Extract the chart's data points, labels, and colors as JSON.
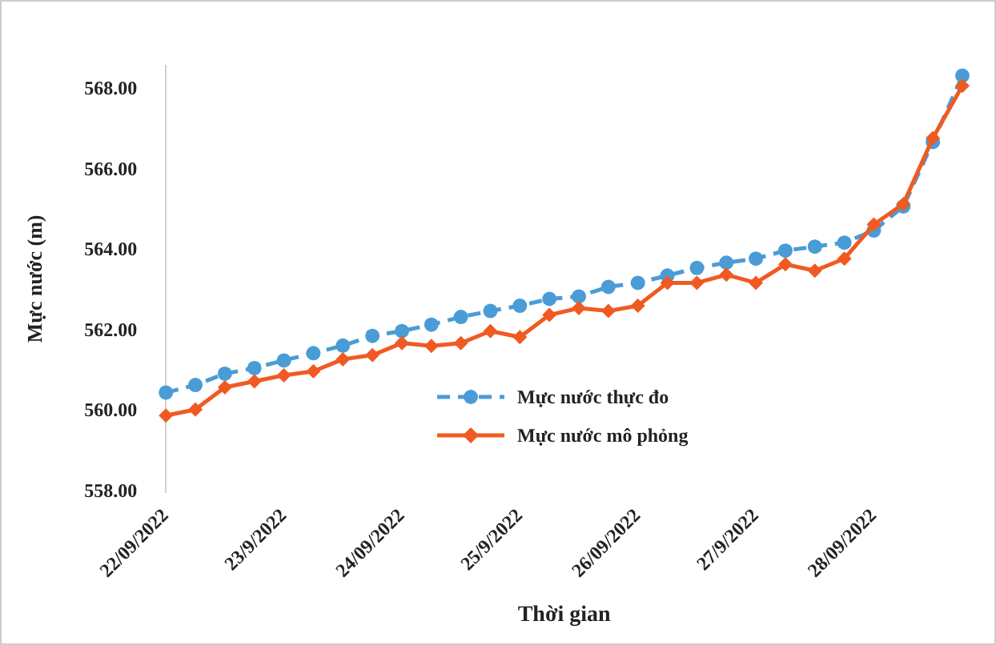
{
  "chart_data": {
    "type": "line",
    "xlabel": "Thời gian",
    "ylabel": "Mực nước (m)",
    "categories": [
      "22/09/2022",
      null,
      null,
      null,
      "23/9/2022",
      null,
      null,
      null,
      "24/09/2022",
      null,
      null,
      null,
      "25/9/2022",
      null,
      null,
      null,
      "26/09/2022",
      null,
      null,
      null,
      "27/9/2022",
      null,
      null,
      null,
      "28/09/2022",
      null,
      null,
      null
    ],
    "series": [
      {
        "name": "Mực nước thực đo",
        "color": "#4a9cd6",
        "line_style": "dashed",
        "marker": "circle",
        "values": [
          560.47,
          560.66,
          560.94,
          561.08,
          561.27,
          561.45,
          561.64,
          561.88,
          562.0,
          562.16,
          562.35,
          562.5,
          562.63,
          562.8,
          562.86,
          563.1,
          563.2,
          563.38,
          563.57,
          563.7,
          563.8,
          564.0,
          564.1,
          564.2,
          564.5,
          565.1,
          566.7,
          568.35
        ]
      },
      {
        "name": "Mực nước mô phỏng",
        "color": "#f05a22",
        "line_style": "solid",
        "marker": "diamond",
        "values": [
          559.9,
          560.05,
          560.6,
          560.75,
          560.9,
          561.0,
          561.3,
          561.4,
          561.7,
          561.63,
          561.7,
          562.0,
          561.85,
          562.4,
          562.57,
          562.5,
          562.63,
          563.2,
          563.2,
          563.4,
          563.2,
          563.66,
          563.5,
          563.8,
          564.65,
          565.16,
          566.8,
          568.1
        ]
      }
    ],
    "ylim": [
      558,
      568.6
    ],
    "yticks": [
      {
        "value": 558,
        "label": "558.00"
      },
      {
        "value": 560,
        "label": "560.00"
      },
      {
        "value": 562,
        "label": "562.00"
      },
      {
        "value": 564,
        "label": "564.00"
      },
      {
        "value": 566,
        "label": "566.00"
      },
      {
        "value": 568,
        "label": "568.00"
      }
    ],
    "grid": false,
    "legend": "bottom"
  }
}
